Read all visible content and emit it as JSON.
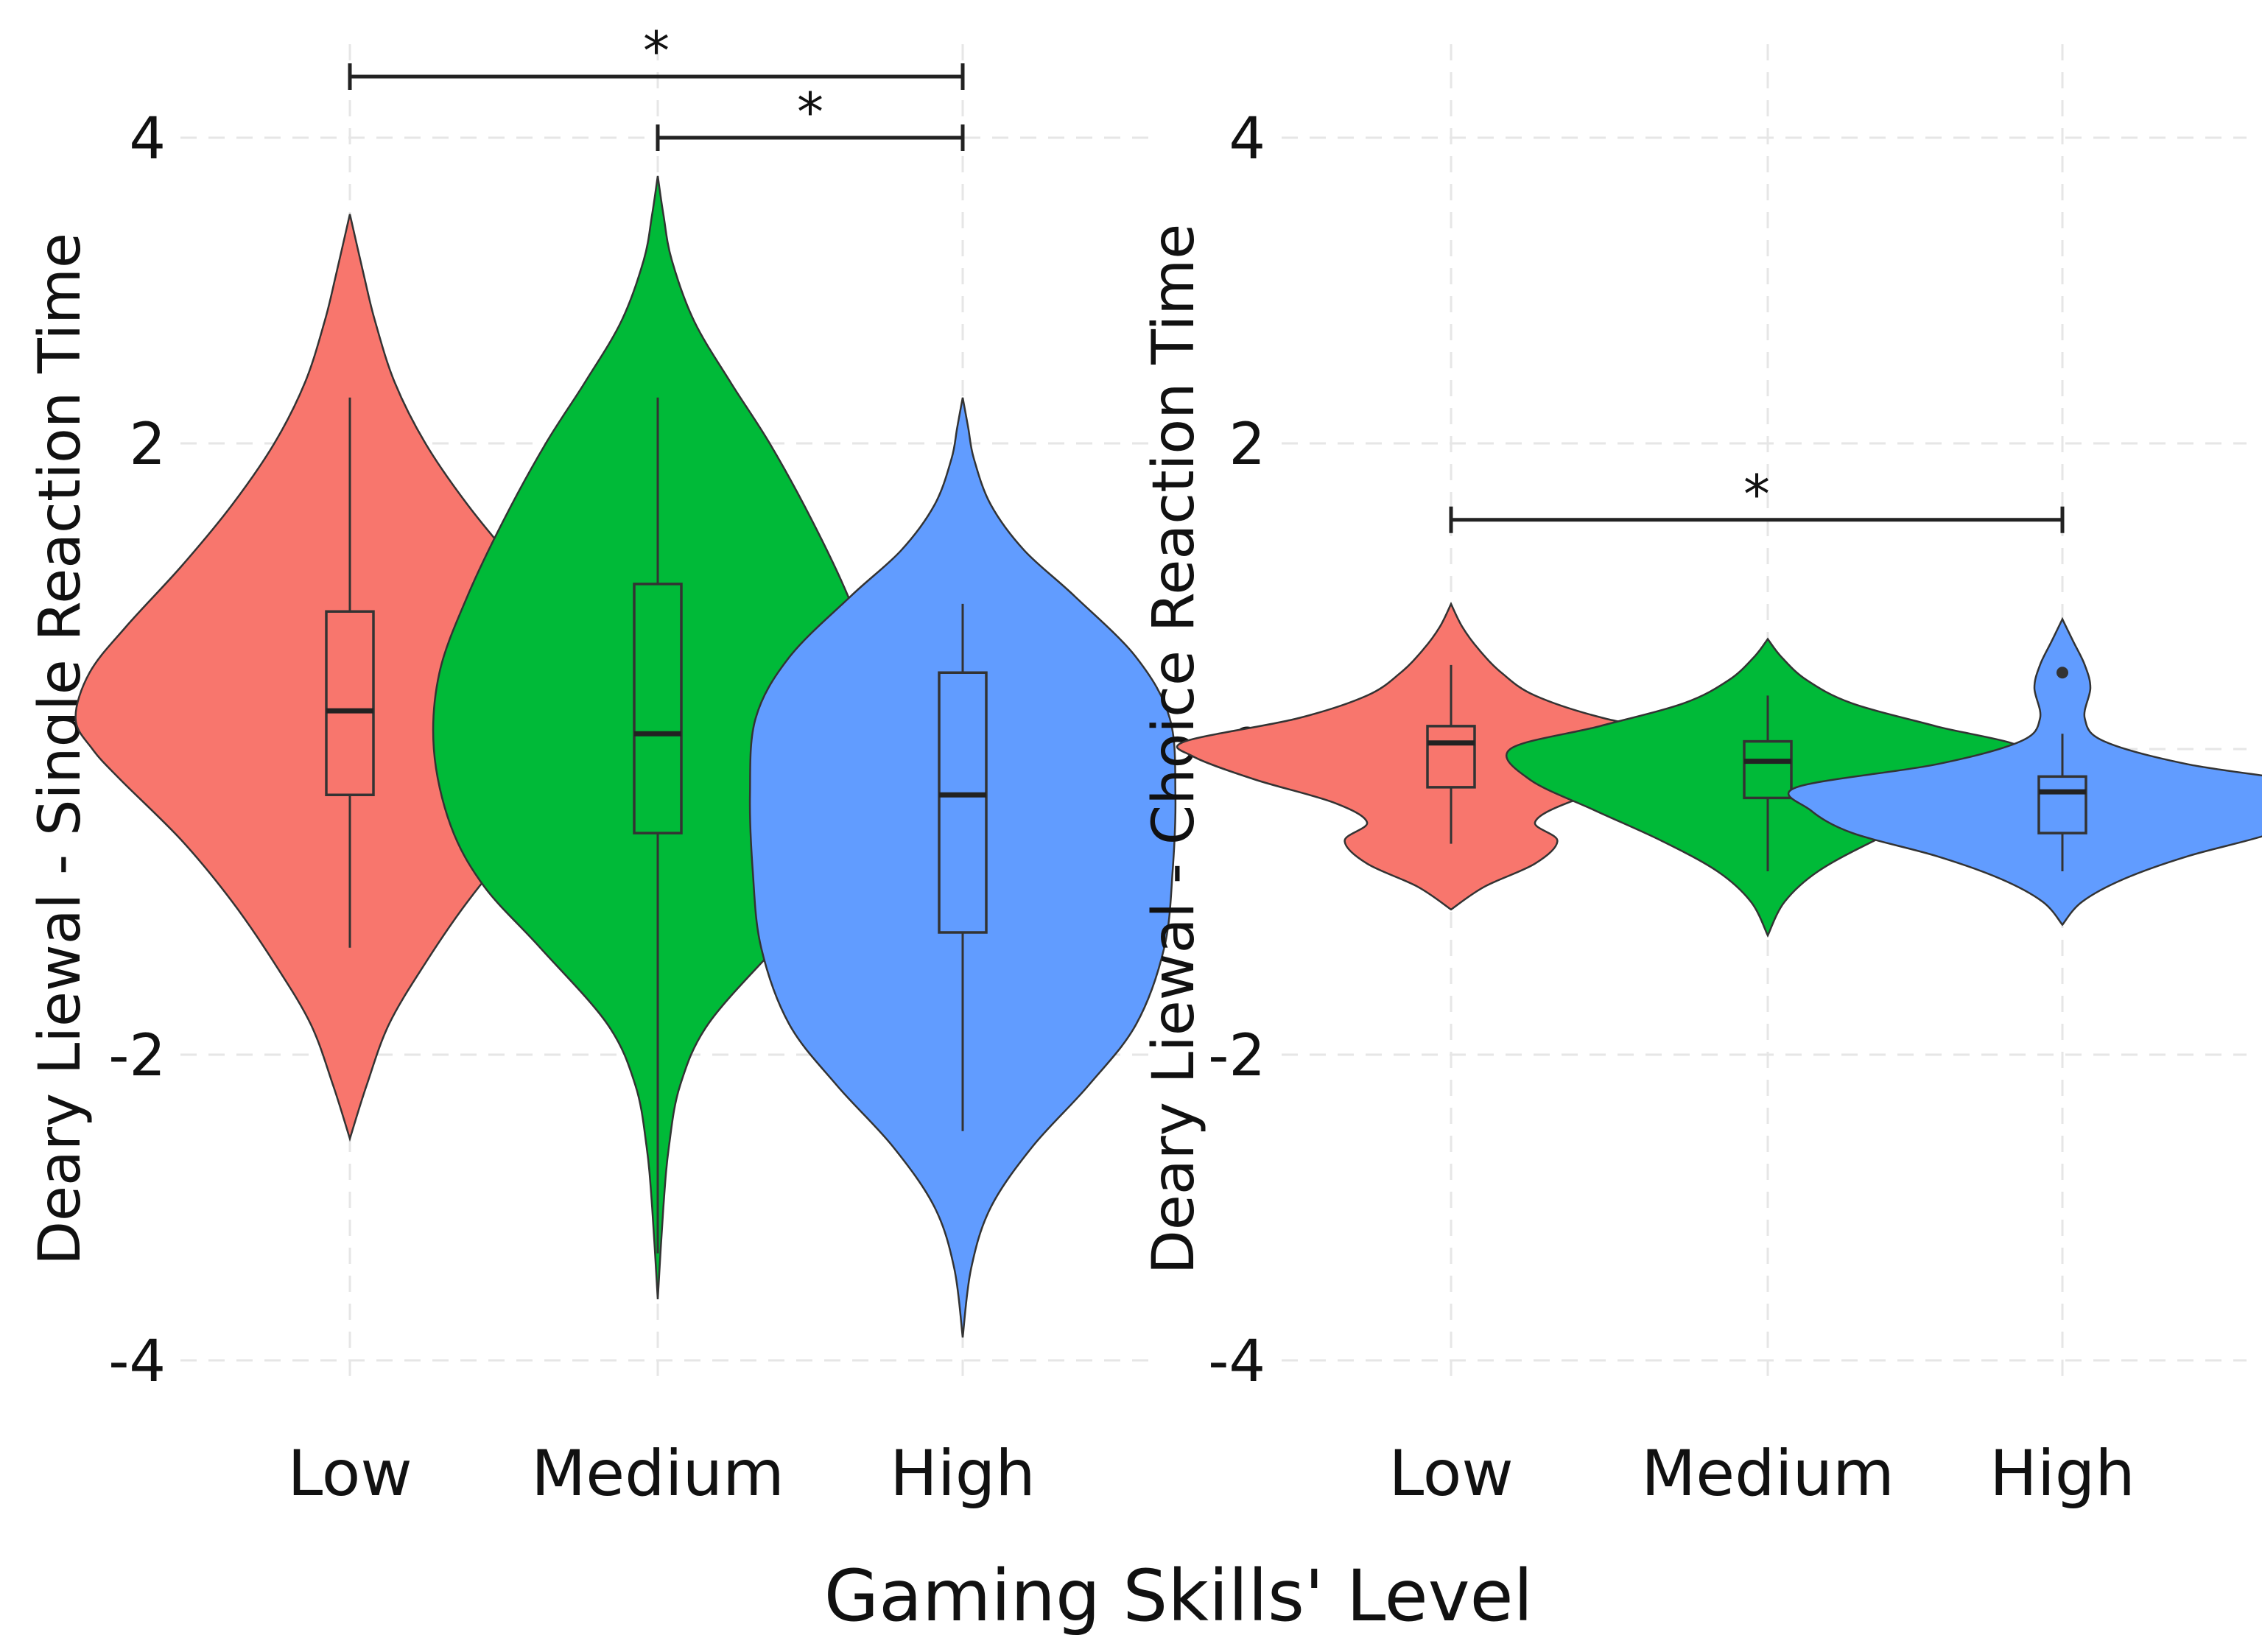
{
  "chart_data": {
    "xlabel": "Gaming Skills' Level",
    "panels": [
      {
        "type": "violin",
        "ylabel": "Deary Liewal - Single Reaction Time",
        "ylim": [
          -4,
          4
        ],
        "yticks": [
          4,
          2,
          0,
          -2,
          -4
        ],
        "ytick_labels": [
          "4",
          "2",
          "0",
          "-2",
          "-4"
        ],
        "categories": [
          "Low",
          "Medium",
          "High"
        ],
        "groups": [
          {
            "name": "Low",
            "color": "#F8766D",
            "box": {
              "min": -1.3,
              "q1": -0.3,
              "median": 0.25,
              "q3": 0.9,
              "max": 2.3
            },
            "density_y": [
              -2.55,
              -2.2,
              -1.8,
              -1.4,
              -1.0,
              -0.6,
              -0.2,
              0.0,
              0.2,
              0.5,
              0.8,
              1.2,
              1.6,
              2.0,
              2.4,
              2.8,
              3.1,
              3.5
            ],
            "density_w": [
              0.0,
              0.06,
              0.14,
              0.27,
              0.42,
              0.6,
              0.82,
              0.92,
              0.98,
              0.93,
              0.8,
              0.6,
              0.42,
              0.27,
              0.16,
              0.09,
              0.05,
              0.0
            ]
          },
          {
            "name": "Medium",
            "color": "#00BA38",
            "box": {
              "min": -3.3,
              "q1": -0.55,
              "median": 0.1,
              "q3": 1.08,
              "max": 2.3
            },
            "density_y": [
              -3.6,
              -3.0,
              -2.6,
              -2.2,
              -1.8,
              -1.3,
              -0.9,
              -0.5,
              0.0,
              0.5,
              1.0,
              1.5,
              2.0,
              2.4,
              2.8,
              3.2,
              3.5,
              3.75
            ],
            "density_w": [
              0.0,
              0.02,
              0.04,
              0.08,
              0.18,
              0.42,
              0.62,
              0.74,
              0.8,
              0.78,
              0.68,
              0.55,
              0.4,
              0.26,
              0.13,
              0.05,
              0.02,
              0.0
            ]
          },
          {
            "name": "High",
            "color": "#619CFF",
            "box": {
              "min": -2.5,
              "q1": -1.2,
              "median": -0.3,
              "q3": 0.5,
              "max": 0.95
            },
            "density_y": [
              -3.85,
              -3.4,
              -3.0,
              -2.6,
              -2.2,
              -1.8,
              -1.3,
              -0.8,
              -0.3,
              0.2,
              0.6,
              1.0,
              1.3,
              1.6,
              1.9,
              2.1,
              2.3
            ],
            "density_w": [
              0.0,
              0.03,
              0.1,
              0.25,
              0.45,
              0.62,
              0.72,
              0.75,
              0.76,
              0.74,
              0.62,
              0.4,
              0.22,
              0.1,
              0.04,
              0.02,
              0.0
            ]
          }
        ],
        "significance": [
          {
            "from": "Low",
            "to": "High",
            "y": 4.4,
            "label": "*"
          },
          {
            "from": "Medium",
            "to": "High",
            "y": 4.0,
            "label": "*"
          }
        ]
      },
      {
        "type": "violin",
        "ylabel": "Deary Liewal - Choice Reaction Time",
        "ylim": [
          -4,
          4
        ],
        "yticks": [
          4,
          2,
          0,
          -2,
          -4
        ],
        "ytick_labels": [
          "4",
          "2",
          "0",
          "-2",
          "-4"
        ],
        "categories": [
          "Low",
          "Medium",
          "High"
        ],
        "groups": [
          {
            "name": "Low",
            "color": "#F8766D",
            "box": {
              "min": -0.62,
              "q1": -0.25,
              "median": 0.04,
              "q3": 0.15,
              "max": 0.55
            },
            "density_y": [
              -1.05,
              -0.9,
              -0.75,
              -0.6,
              -0.48,
              -0.35,
              -0.2,
              -0.05,
              0.05,
              0.2,
              0.35,
              0.5,
              0.65,
              0.8,
              0.95
            ],
            "density_w": [
              0.0,
              0.12,
              0.3,
              0.38,
              0.3,
              0.42,
              0.7,
              0.92,
              0.95,
              0.55,
              0.3,
              0.18,
              0.1,
              0.04,
              0.0
            ]
          },
          {
            "name": "Medium",
            "color": "#00BA38",
            "box": {
              "min": -0.8,
              "q1": -0.32,
              "median": -0.08,
              "q3": 0.05,
              "max": 0.35
            },
            "density_y": [
              -1.22,
              -1.0,
              -0.8,
              -0.6,
              -0.4,
              -0.2,
              0.0,
              0.15,
              0.3,
              0.45,
              0.6,
              0.72
            ],
            "density_w": [
              0.0,
              0.06,
              0.18,
              0.38,
              0.62,
              0.85,
              0.92,
              0.6,
              0.3,
              0.14,
              0.05,
              0.0
            ]
          },
          {
            "name": "High",
            "color": "#619CFF",
            "box": {
              "min": -0.8,
              "q1": -0.55,
              "median": -0.28,
              "q3": -0.18,
              "max": 0.1
            },
            "density_y": [
              -1.15,
              -1.0,
              -0.85,
              -0.7,
              -0.55,
              -0.4,
              -0.25,
              -0.1,
              0.05,
              0.2,
              0.4,
              0.55,
              0.7,
              0.85
            ],
            "density_w": [
              0.0,
              0.07,
              0.22,
              0.45,
              0.75,
              0.9,
              0.95,
              0.45,
              0.15,
              0.08,
              0.1,
              0.08,
              0.04,
              0.0
            ]
          }
        ],
        "outliers": [
          {
            "group": "High",
            "y": 0.5
          }
        ],
        "significance": [
          {
            "from": "Low",
            "to": "High",
            "y": 1.5,
            "label": "*"
          }
        ]
      }
    ]
  }
}
